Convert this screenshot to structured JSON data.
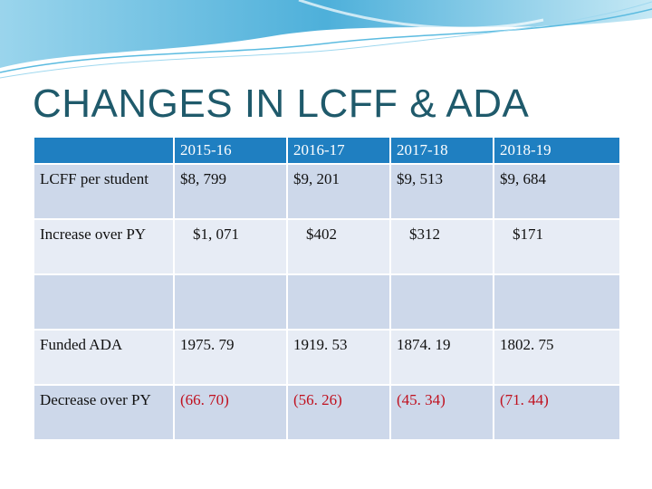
{
  "slide": {
    "title": "CHANGES IN LCFF & ADA"
  },
  "table": {
    "columns": [
      "",
      "2015-16",
      "2016-17",
      "2017-18",
      "2018-19"
    ],
    "rows": [
      {
        "label": "LCFF per student",
        "values": [
          "$8, 799",
          "$9, 201",
          "$9, 513",
          "$9, 684"
        ]
      },
      {
        "label": "Increase over PY",
        "values": [
          "$1, 071",
          "$402",
          "$312",
          "$171"
        ]
      },
      {
        "label": "",
        "values": [
          "",
          "",
          "",
          ""
        ]
      },
      {
        "label": "Funded ADA",
        "values": [
          "1975. 79",
          "1919. 53",
          "1874. 19",
          "1802. 75"
        ]
      },
      {
        "label": "Decrease over PY",
        "values": [
          "(66. 70)",
          "(56. 26)",
          "(45. 34)",
          "(71. 44)"
        ]
      }
    ]
  },
  "colors": {
    "title": "#1f5a6b",
    "header": "#1f7fc1",
    "row_dark": "#cdd8ea",
    "row_light": "#e7ecf5",
    "negative": "#c0111f"
  }
}
